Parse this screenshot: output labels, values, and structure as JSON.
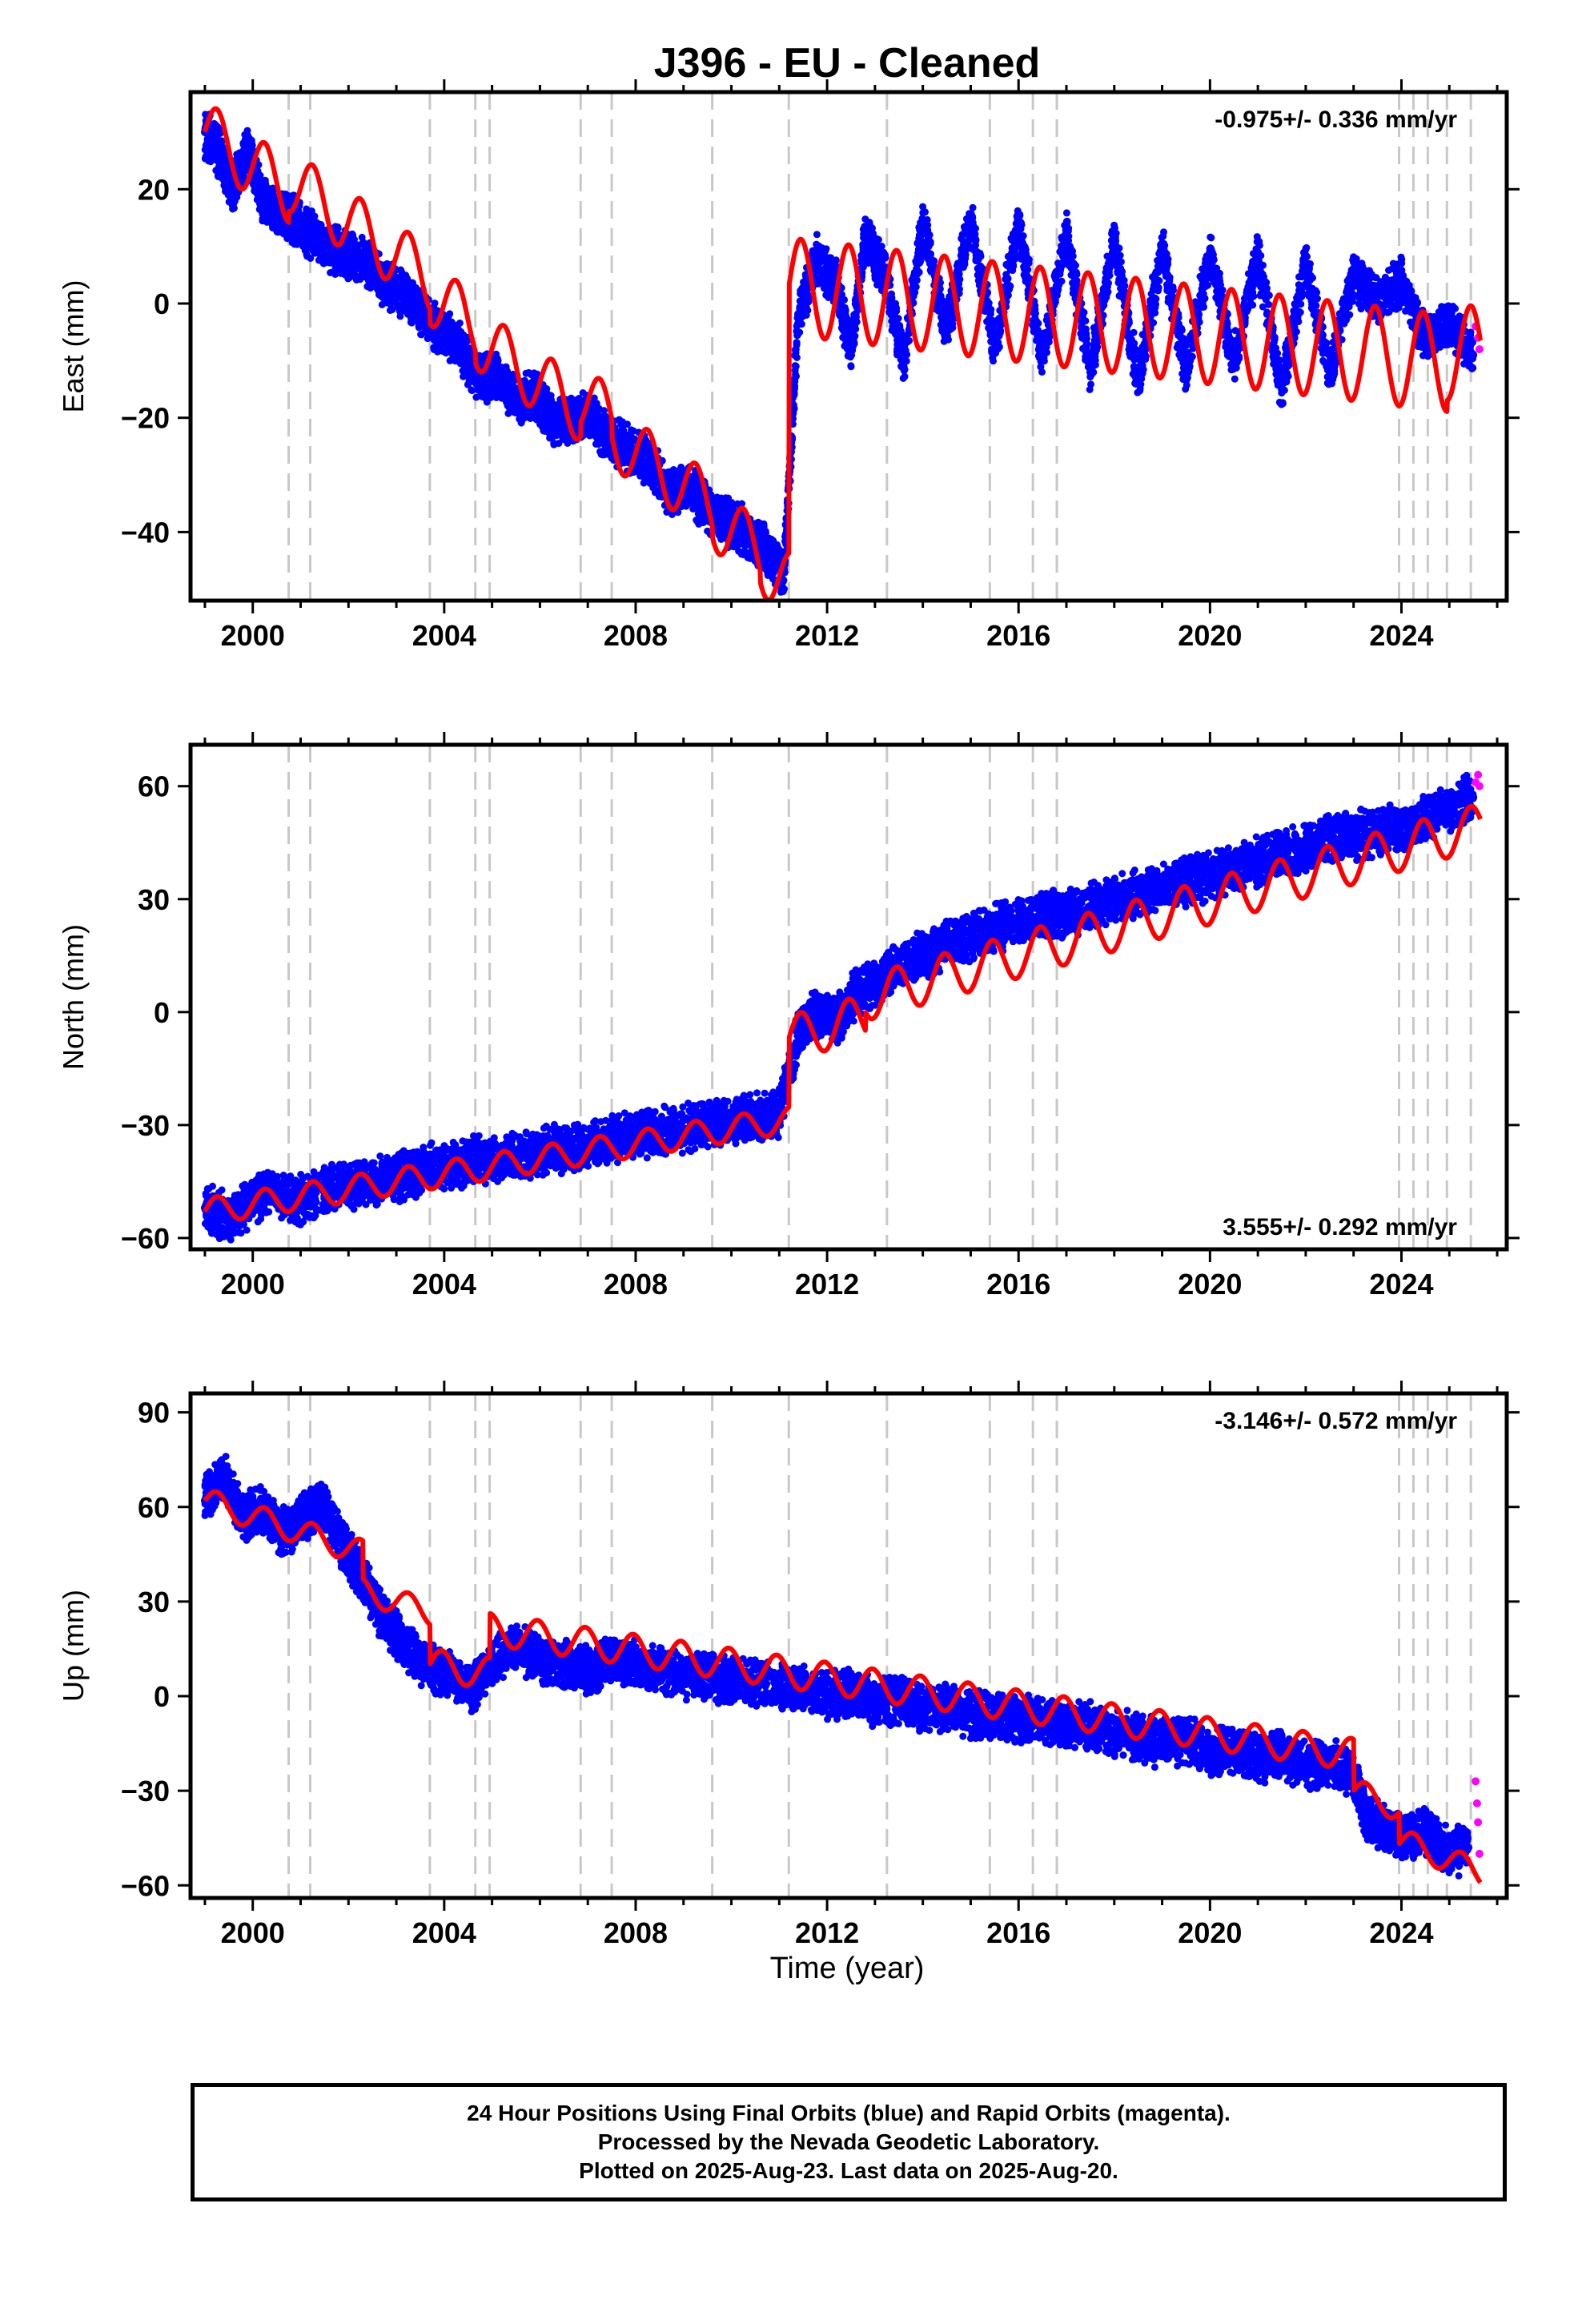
{
  "title": "J396  - EU - Cleaned",
  "xlabel": "Time (year)",
  "footer": {
    "line1": "24 Hour Positions Using Final Orbits (blue) and Rapid Orbits (magenta).",
    "line2": "Processed by the Nevada Geodetic Laboratory.",
    "line3": "Plotted on 2025-Aug-23. Last data on 2025-Aug-20."
  },
  "colors": {
    "final_orbits": "#0000ff",
    "rapid_orbits": "#ff00ff",
    "model": "#ff0000",
    "event_lines": "#c8c8c8"
  },
  "chart_data": [
    {
      "type": "scatter",
      "panel": "east",
      "ylabel": "East (mm)",
      "rate_label": "-0.975+/- 0.336 mm/yr",
      "rate_position": "top-right",
      "xlim": [
        1998.7,
        2026.2
      ],
      "ylim": [
        -52,
        37
      ],
      "xticks": [
        2000,
        2004,
        2008,
        2012,
        2016,
        2020,
        2024
      ],
      "yticks": [
        20,
        0,
        -20,
        -40
      ],
      "event_lines": [
        2000.75,
        2001.2,
        2003.7,
        2004.65,
        2004.95,
        2006.85,
        2007.5,
        2009.6,
        2011.2,
        2013.25,
        2015.4,
        2016.3,
        2016.8,
        2023.95,
        2024.25,
        2024.55,
        2024.95,
        2025.45
      ],
      "model_segments": [
        {
          "start": 1999.0,
          "end": 2011.2,
          "value_at_start": 30,
          "rate": -5.9,
          "annual_amp": 5.5,
          "jumps": [
            [
              2000.75,
              2
            ],
            [
              2003.7,
              -2.5
            ],
            [
              2004.65,
              -2
            ],
            [
              2006.85,
              2.5
            ],
            [
              2007.5,
              -3
            ],
            [
              2009.6,
              -2
            ],
            [
              2010.6,
              -2
            ]
          ]
        },
        {
          "start": 2011.2,
          "end": 2025.65,
          "value_at_start": 3,
          "rate": -0.975,
          "annual_amp": 8.5,
          "jumps": [
            [
              2024.95,
              2
            ]
          ]
        }
      ],
      "final_orbits_points": [
        [
          1999.0,
          30
        ],
        [
          1999.3,
          26
        ],
        [
          1999.6,
          20
        ],
        [
          1999.9,
          27
        ],
        [
          2000.2,
          18
        ],
        [
          2000.5,
          16
        ],
        [
          2000.8,
          15
        ],
        [
          2001.1,
          13
        ],
        [
          2001.5,
          10
        ],
        [
          2001.9,
          9
        ],
        [
          2002.3,
          8
        ],
        [
          2002.7,
          4
        ],
        [
          2003.1,
          2
        ],
        [
          2003.5,
          -1
        ],
        [
          2003.9,
          -5
        ],
        [
          2004.3,
          -7
        ],
        [
          2004.7,
          -13
        ],
        [
          2005.1,
          -13
        ],
        [
          2005.5,
          -17
        ],
        [
          2005.9,
          -16
        ],
        [
          2006.3,
          -21
        ],
        [
          2006.7,
          -20
        ],
        [
          2007.1,
          -20
        ],
        [
          2007.5,
          -24
        ],
        [
          2007.9,
          -26
        ],
        [
          2008.3,
          -28
        ],
        [
          2008.7,
          -33
        ],
        [
          2009.1,
          -32
        ],
        [
          2009.5,
          -36
        ],
        [
          2009.9,
          -38
        ],
        [
          2010.3,
          -40
        ],
        [
          2010.7,
          -43
        ],
        [
          2011.1,
          -47
        ],
        [
          2011.4,
          -2
        ],
        [
          2011.8,
          8
        ],
        [
          2012.2,
          3
        ],
        [
          2012.5,
          -8
        ],
        [
          2012.8,
          12
        ],
        [
          2013.2,
          5
        ],
        [
          2013.6,
          -10
        ],
        [
          2014.0,
          14
        ],
        [
          2014.5,
          -5
        ],
        [
          2015.0,
          15
        ],
        [
          2015.5,
          -8
        ],
        [
          2016.0,
          14
        ],
        [
          2016.5,
          -10
        ],
        [
          2017.0,
          12
        ],
        [
          2017.5,
          -12
        ],
        [
          2018.0,
          11
        ],
        [
          2018.5,
          -14
        ],
        [
          2019.0,
          10
        ],
        [
          2019.5,
          -12
        ],
        [
          2020.0,
          9
        ],
        [
          2020.5,
          -10
        ],
        [
          2021.0,
          8
        ],
        [
          2021.5,
          -15
        ],
        [
          2022.0,
          7
        ],
        [
          2022.5,
          -12
        ],
        [
          2023.0,
          5
        ],
        [
          2023.5,
          0
        ],
        [
          2024.0,
          4
        ],
        [
          2024.5,
          -6
        ],
        [
          2025.0,
          -3
        ],
        [
          2025.5,
          -9
        ]
      ],
      "rapid_orbits_points": [
        [
          2025.55,
          -4
        ],
        [
          2025.6,
          -6
        ],
        [
          2025.63,
          -8
        ]
      ]
    },
    {
      "type": "scatter",
      "panel": "north",
      "ylabel": "North (mm)",
      "rate_label": "3.555+/- 0.292 mm/yr",
      "rate_position": "bottom-right",
      "xlim": [
        1998.7,
        2026.2
      ],
      "ylim": [
        -63,
        71
      ],
      "xticks": [
        2000,
        2004,
        2008,
        2012,
        2016,
        2020,
        2024
      ],
      "yticks": [
        60,
        30,
        0,
        -30,
        -60
      ],
      "event_lines": [
        2000.75,
        2001.2,
        2003.7,
        2004.65,
        2004.95,
        2006.85,
        2007.5,
        2009.6,
        2011.2,
        2013.25,
        2015.4,
        2016.3,
        2016.8,
        2023.95,
        2024.25,
        2024.55,
        2024.95,
        2025.45
      ],
      "model_segments": [
        {
          "start": 1999.0,
          "end": 2011.2,
          "value_at_start": -53,
          "rate": 2.0,
          "annual_amp": 3.5,
          "jumps": []
        },
        {
          "start": 2011.2,
          "end": 2025.65,
          "value_at_start": -7,
          "rate": 3.555,
          "annual_amp": 6.0,
          "jumps": [
            [
              2012.8,
              5
            ]
          ]
        }
      ],
      "final_orbits_points": [
        [
          1999.0,
          -52
        ],
        [
          1999.5,
          -55
        ],
        [
          2000.0,
          -50
        ],
        [
          2000.5,
          -48
        ],
        [
          2001.0,
          -50
        ],
        [
          2001.5,
          -47
        ],
        [
          2002.0,
          -46
        ],
        [
          2002.5,
          -45
        ],
        [
          2003.0,
          -44
        ],
        [
          2003.5,
          -42
        ],
        [
          2004.0,
          -41
        ],
        [
          2004.5,
          -40
        ],
        [
          2005.0,
          -39
        ],
        [
          2005.5,
          -38
        ],
        [
          2006.0,
          -37
        ],
        [
          2006.5,
          -36
        ],
        [
          2007.0,
          -36
        ],
        [
          2007.5,
          -34
        ],
        [
          2008.0,
          -33
        ],
        [
          2008.5,
          -32
        ],
        [
          2009.0,
          -31
        ],
        [
          2009.5,
          -30
        ],
        [
          2010.0,
          -29
        ],
        [
          2010.5,
          -28
        ],
        [
          2011.0,
          -27
        ],
        [
          2011.4,
          -5
        ],
        [
          2011.8,
          0
        ],
        [
          2012.2,
          -2
        ],
        [
          2012.6,
          5
        ],
        [
          2013.0,
          8
        ],
        [
          2013.5,
          12
        ],
        [
          2014.0,
          15
        ],
        [
          2014.5,
          18
        ],
        [
          2015.0,
          20
        ],
        [
          2015.5,
          22
        ],
        [
          2016.0,
          24
        ],
        [
          2016.5,
          26
        ],
        [
          2017.0,
          26
        ],
        [
          2017.5,
          28
        ],
        [
          2018.0,
          30
        ],
        [
          2018.5,
          31
        ],
        [
          2019.0,
          33
        ],
        [
          2019.5,
          35
        ],
        [
          2020.0,
          36
        ],
        [
          2020.5,
          38
        ],
        [
          2021.0,
          40
        ],
        [
          2021.5,
          42
        ],
        [
          2022.0,
          43
        ],
        [
          2022.5,
          46
        ],
        [
          2023.0,
          47
        ],
        [
          2023.5,
          48
        ],
        [
          2024.0,
          49
        ],
        [
          2024.5,
          52
        ],
        [
          2025.0,
          54
        ],
        [
          2025.5,
          57
        ]
      ],
      "rapid_orbits_points": [
        [
          2025.55,
          61
        ],
        [
          2025.6,
          63
        ],
        [
          2025.63,
          60
        ]
      ]
    },
    {
      "type": "scatter",
      "panel": "up",
      "ylabel": "Up (mm)",
      "rate_label": "-3.146+/- 0.572 mm/yr",
      "rate_position": "top-right",
      "xlim": [
        1998.7,
        2026.2
      ],
      "ylim": [
        -64,
        96
      ],
      "xticks": [
        2000,
        2004,
        2008,
        2012,
        2016,
        2020,
        2024
      ],
      "yticks": [
        90,
        60,
        30,
        0,
        -30,
        -60
      ],
      "event_lines": [
        2000.75,
        2001.2,
        2003.7,
        2004.65,
        2004.95,
        2006.85,
        2007.5,
        2009.6,
        2011.2,
        2013.25,
        2015.4,
        2016.3,
        2016.8,
        2023.95,
        2024.25,
        2024.55,
        2024.95,
        2025.45
      ],
      "model_segments": [
        {
          "start": 1999.0,
          "end": 2003.7,
          "value_at_start": 62,
          "rate": -5.0,
          "annual_amp": 4.0,
          "jumps": [
            [
              2002.3,
              -12
            ]
          ]
        },
        {
          "start": 2003.7,
          "end": 2023.0,
          "value_at_start": 10,
          "rate": -2.2,
          "annual_amp": 5.0,
          "jumps": [
            [
              2004.95,
              14
            ]
          ]
        },
        {
          "start": 2023.0,
          "end": 2025.65,
          "value_at_start": -30,
          "rate": -6.0,
          "annual_amp": 4.0,
          "jumps": [
            [
              2023.95,
              -10
            ]
          ]
        }
      ],
      "final_orbits_points": [
        [
          1999.0,
          62
        ],
        [
          1999.4,
          70
        ],
        [
          1999.8,
          56
        ],
        [
          2000.2,
          60
        ],
        [
          2000.6,
          52
        ],
        [
          2001.0,
          55
        ],
        [
          2001.4,
          62
        ],
        [
          2001.8,
          50
        ],
        [
          2002.2,
          40
        ],
        [
          2002.6,
          28
        ],
        [
          2003.0,
          20
        ],
        [
          2003.4,
          12
        ],
        [
          2003.8,
          8
        ],
        [
          2004.2,
          6
        ],
        [
          2004.6,
          2
        ],
        [
          2005.0,
          12
        ],
        [
          2005.5,
          15
        ],
        [
          2006.0,
          12
        ],
        [
          2006.5,
          10
        ],
        [
          2007.0,
          8
        ],
        [
          2007.5,
          12
        ],
        [
          2008.0,
          10
        ],
        [
          2008.5,
          8
        ],
        [
          2009.0,
          7
        ],
        [
          2009.5,
          6
        ],
        [
          2010.0,
          5
        ],
        [
          2010.5,
          4
        ],
        [
          2011.0,
          3
        ],
        [
          2011.5,
          2
        ],
        [
          2012.0,
          0
        ],
        [
          2012.5,
          1
        ],
        [
          2013.0,
          -2
        ],
        [
          2013.5,
          -1
        ],
        [
          2014.0,
          -4
        ],
        [
          2014.5,
          -3
        ],
        [
          2015.0,
          -6
        ],
        [
          2015.5,
          -5
        ],
        [
          2016.0,
          -8
        ],
        [
          2016.5,
          -7
        ],
        [
          2017.0,
          -10
        ],
        [
          2017.5,
          -9
        ],
        [
          2018.0,
          -12
        ],
        [
          2018.5,
          -13
        ],
        [
          2019.0,
          -15
        ],
        [
          2019.5,
          -14
        ],
        [
          2020.0,
          -18
        ],
        [
          2020.5,
          -17
        ],
        [
          2021.0,
          -20
        ],
        [
          2021.5,
          -19
        ],
        [
          2022.0,
          -22
        ],
        [
          2022.5,
          -21
        ],
        [
          2023.0,
          -25
        ],
        [
          2023.3,
          -40
        ],
        [
          2023.7,
          -42
        ],
        [
          2024.0,
          -45
        ],
        [
          2024.5,
          -43
        ],
        [
          2025.0,
          -50
        ],
        [
          2025.4,
          -48
        ]
      ],
      "rapid_orbits_points": [
        [
          2025.55,
          -27
        ],
        [
          2025.58,
          -34
        ],
        [
          2025.6,
          -40
        ],
        [
          2025.63,
          -50
        ]
      ]
    }
  ]
}
